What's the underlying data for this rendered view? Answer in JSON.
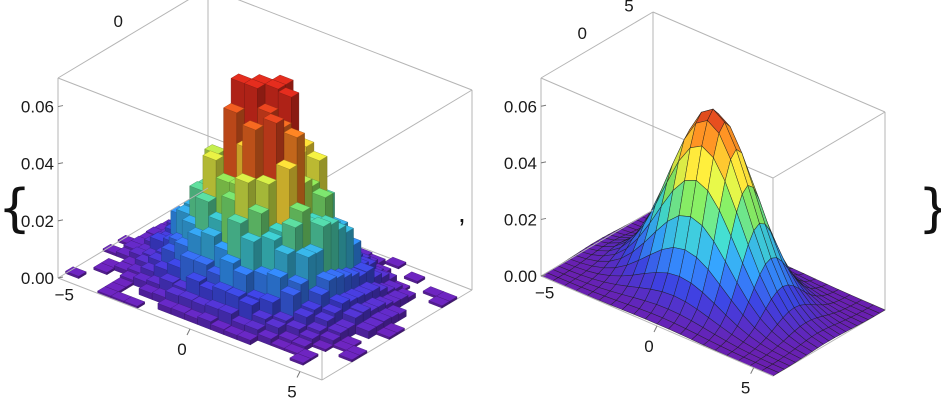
{
  "chart_data": [
    {
      "type": "histogram3d",
      "x_ticks": [
        "−5",
        "0",
        "5"
      ],
      "y_ticks": [
        "0",
        "5"
      ],
      "z_ticks": [
        "0.00",
        "0.02",
        "0.04",
        "0.06"
      ],
      "xlim": [
        -6,
        6
      ],
      "ylim": [
        -6,
        6
      ],
      "zlim": [
        0,
        0.07
      ],
      "bins": {
        "x_start": -6,
        "y_start": -6,
        "width": 0.6,
        "count": 20
      },
      "grid_centered_gaussian": {
        "center_x": 0,
        "center_y": 0,
        "sigma": 2.0,
        "peak": 0.065
      },
      "color_scale": [
        "#6a1fb0",
        "#3b3fd8",
        "#2f8ff0",
        "#3cc8c0",
        "#7ed957",
        "#f2e23a",
        "#f59a23",
        "#d42a1c"
      ]
    },
    {
      "type": "surface3d",
      "x_ticks": [
        "−5",
        "0",
        "5"
      ],
      "y_ticks": [
        "0",
        "5"
      ],
      "z_ticks": [
        "0.00",
        "0.02",
        "0.04",
        "0.06"
      ],
      "xlim": [
        -6,
        6
      ],
      "ylim": [
        -6,
        6
      ],
      "zlim": [
        0,
        0.07
      ],
      "grid_lines": 20,
      "gaussian": {
        "center_x": 0,
        "center_y": 0,
        "sigma": 2.0,
        "peak": 0.065
      },
      "color_scale": [
        "#6a1fb0",
        "#3b3fd8",
        "#2f8ff0",
        "#3cc8c0",
        "#7ed957",
        "#f2e23a",
        "#f59a23",
        "#d42a1c"
      ]
    }
  ],
  "list_syntax": {
    "open": "{",
    "separator": ",",
    "close": "}"
  }
}
